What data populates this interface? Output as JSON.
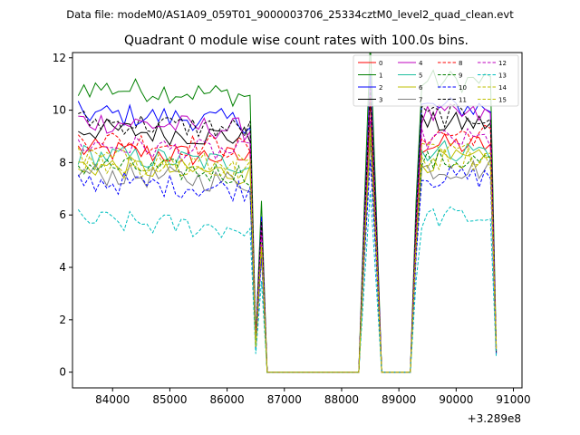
{
  "chart_data": {
    "type": "line",
    "suptitle": "Data file: modeM0/AS1A09_059T01_9000003706_25334cztM0_level2_quad_clean.evt",
    "title": "Quadrant 0 module wise count rates with 100.0s bins.",
    "xlabel": "",
    "ylabel": "",
    "x_offset_label": "+3.289e8",
    "xlim": [
      83300,
      91150
    ],
    "ylim": [
      -0.6,
      12.2
    ],
    "x_ticks": [
      84000,
      85000,
      86000,
      87000,
      88000,
      89000,
      90000,
      91000
    ],
    "y_ticks": [
      0,
      2,
      4,
      6,
      8,
      10,
      12
    ],
    "grid": false,
    "legend_position": "top-right",
    "series": [
      {
        "name": "0",
        "color": "#ff0000",
        "dash": "solid",
        "level": 8.5
      },
      {
        "name": "1",
        "color": "#008000",
        "dash": "solid",
        "level": 10.9
      },
      {
        "name": "2",
        "color": "#0000ff",
        "dash": "solid",
        "level": 9.9
      },
      {
        "name": "3",
        "color": "#000000",
        "dash": "solid",
        "level": 9.3
      },
      {
        "name": "4",
        "color": "#bf00bf",
        "dash": "solid",
        "level": 9.6
      },
      {
        "name": "5",
        "color": "#1fbf9f",
        "dash": "solid",
        "level": 8.3
      },
      {
        "name": "6",
        "color": "#bfbf00",
        "dash": "solid",
        "level": 7.9
      },
      {
        "name": "7",
        "color": "#808080",
        "dash": "solid",
        "level": 7.6
      },
      {
        "name": "8",
        "color": "#ff0000",
        "dash": "dashed",
        "level": 8.9
      },
      {
        "name": "9",
        "color": "#008000",
        "dash": "dashed",
        "level": 7.9
      },
      {
        "name": "10",
        "color": "#0000ff",
        "dash": "dashed",
        "level": 7.3
      },
      {
        "name": "11",
        "color": "#000000",
        "dash": "dashed",
        "level": 9.6
      },
      {
        "name": "12",
        "color": "#bf00bf",
        "dash": "dashed",
        "level": 8.7
      },
      {
        "name": "13",
        "color": "#00bfbf",
        "dash": "dashed",
        "level": 5.8
      },
      {
        "name": "14",
        "color": "#bfbf00",
        "dash": "dashed",
        "level": 8.2
      },
      {
        "name": "15",
        "color": "#bfbf00",
        "dash": "dashed",
        "level": 8.0
      }
    ],
    "time_profile": {
      "start": 83400,
      "step": 100,
      "active_until": 86450,
      "drop_end": 86600,
      "gaps": [
        [
          86700,
          88300
        ],
        [
          88700,
          89200
        ]
      ],
      "peaks": [
        88500,
        89350
      ],
      "end": 90700
    }
  }
}
